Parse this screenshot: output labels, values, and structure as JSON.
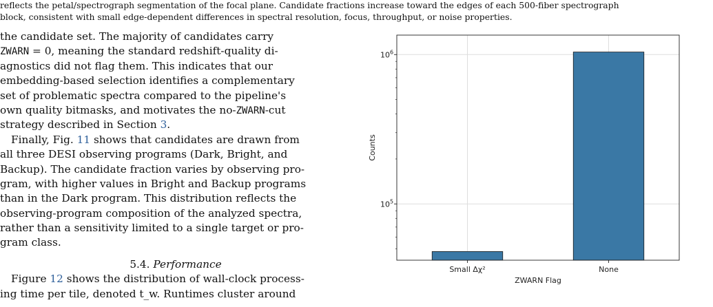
{
  "caption": {
    "line1": "reflects the petal/spectrograph segmentation of the focal plane. Candidate fractions increase toward the edges of each 500-fiber spectrograph",
    "line2": "block, consistent with small edge-dependent differences in spectral resolution, focus, throughput, or noise properties."
  },
  "body": {
    "p1": {
      "l1": "the candidate set.  The majority of candidates carry",
      "l2_code": "ZWARN",
      "l2_text": " = 0, meaning the standard redshift-quality di-",
      "l3": "agnostics did not flag them.  This indicates that our",
      "l4": "embedding-based selection identifies a complementary",
      "l5": "set of problematic spectra compared to the pipeline's",
      "l6_pre": "own quality bitmasks, and motivates the no-",
      "l6_code": "ZWARN",
      "l6_post": "-cut",
      "l7_pre": "strategy described in Section ",
      "l7_link": "3",
      "l7_post": "."
    },
    "p2": {
      "l1_pre": "Finally, Fig. ",
      "l1_link": "11",
      "l1_post": " shows that candidates are drawn from",
      "l2": "all three DESI observing programs (Dark, Bright, and",
      "l3": "Backup). The candidate fraction varies by observing pro-",
      "l4": "gram, with higher values in Bright and Backup programs",
      "l5": "than in the Dark program. This distribution reflects the",
      "l6": "observing-program composition of the analyzed spectra,",
      "l7": "rather than a sensitivity limited to a single target or pro-",
      "l8": "gram class."
    },
    "section": {
      "number": "5.4.",
      "title": "Performance"
    },
    "p3": {
      "l1_pre": "Figure ",
      "l1_link": "12",
      "l1_post": " shows the distribution of wall-clock process-",
      "l2": "ing time per tile, denoted t_w. Runtimes cluster around"
    },
    "link_color": "#2e5f9a"
  },
  "chart_data": {
    "type": "bar",
    "categories": [
      "Small Δχ²",
      "None"
    ],
    "values": [
      48000,
      1040000
    ],
    "xlabel": "ZWARN Flag",
    "ylabel": "Counts",
    "yscale": "log",
    "ylim": [
      42000,
      1350000
    ],
    "ytick_labels": [
      {
        "value": 100000,
        "base": "10",
        "exp": "5"
      },
      {
        "value": 1000000,
        "base": "10",
        "exp": "6"
      }
    ],
    "grid": true,
    "bar_color": "#3a78a5",
    "edge_color": "#1a1a1a"
  }
}
